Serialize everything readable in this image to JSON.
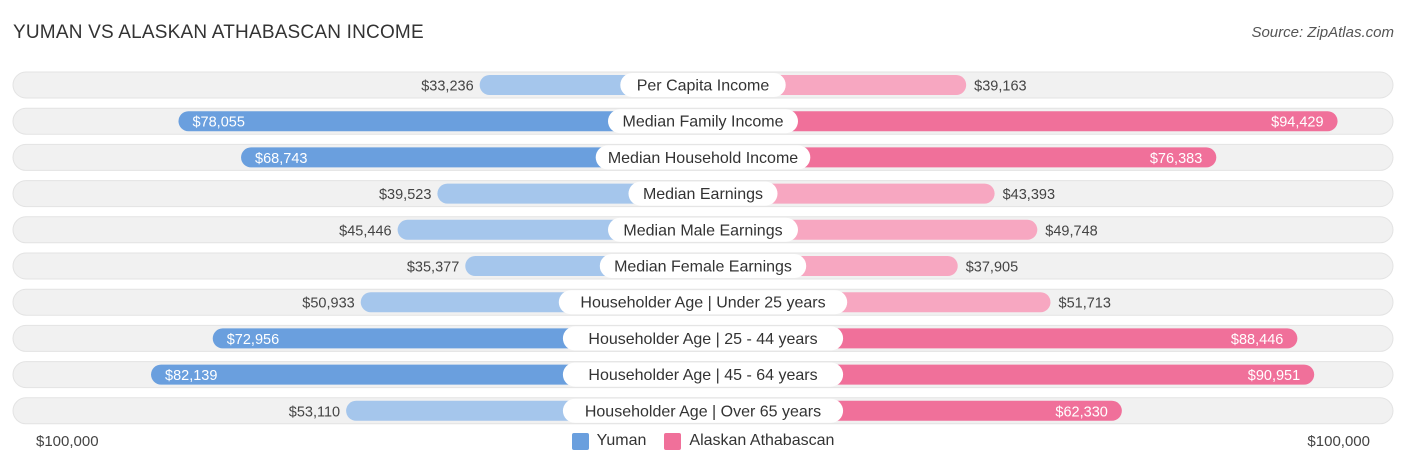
{
  "header": {
    "title": "YUMAN VS ALASKAN ATHABASCAN INCOME",
    "source": "Source: ZipAtlas.com"
  },
  "colors": {
    "left_strong": "#6a9fde",
    "left_light": "#a5c6ec",
    "right_strong": "#f0709a",
    "right_light": "#f7a7c1",
    "track": "#f1f1f1"
  },
  "chart_data": {
    "type": "bar",
    "orientation": "horizontal-diverging",
    "axis_max": 100000,
    "axis_left_label": "$100,000",
    "axis_right_label": "$100,000",
    "categories": [
      "Per Capita Income",
      "Median Family Income",
      "Median Household Income",
      "Median Earnings",
      "Median Male Earnings",
      "Median Female Earnings",
      "Householder Age | Under 25 years",
      "Householder Age | 25 - 44 years",
      "Householder Age | 45 - 64 years",
      "Householder Age | Over 65 years"
    ],
    "series": [
      {
        "name": "Yuman",
        "side": "left",
        "values": [
          33236,
          78055,
          68743,
          39523,
          45446,
          35377,
          50933,
          72956,
          82139,
          53110
        ],
        "labels": [
          "$33,236",
          "$78,055",
          "$68,743",
          "$39,523",
          "$45,446",
          "$35,377",
          "$50,933",
          "$72,956",
          "$82,139",
          "$53,110"
        ]
      },
      {
        "name": "Alaskan Athabascan",
        "side": "right",
        "values": [
          39163,
          94429,
          76383,
          43393,
          49748,
          37905,
          51713,
          88446,
          90951,
          62330
        ],
        "labels": [
          "$39,163",
          "$94,429",
          "$76,383",
          "$43,393",
          "$49,748",
          "$37,905",
          "$51,713",
          "$88,446",
          "$90,951",
          "$62,330"
        ]
      }
    ],
    "legend": {
      "position": "bottom-center"
    }
  }
}
